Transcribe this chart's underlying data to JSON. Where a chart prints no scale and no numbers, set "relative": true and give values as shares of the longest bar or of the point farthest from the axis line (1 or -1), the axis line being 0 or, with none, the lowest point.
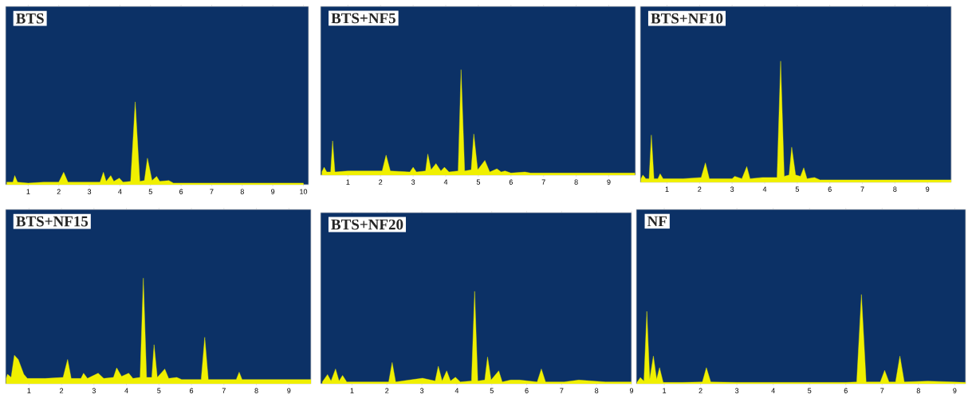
{
  "chart_data": [
    {
      "type": "area",
      "title": "BTS",
      "relative": true,
      "color": "#f0f000",
      "xlim": [
        0.26,
        10.17
      ],
      "xticks": [
        1,
        2,
        3,
        4,
        5,
        6,
        7,
        8,
        9,
        10
      ],
      "x": [
        0.3,
        0.5,
        0.56,
        0.65,
        1.0,
        1.5,
        2.0,
        2.16,
        2.3,
        3.0,
        3.35,
        3.46,
        3.55,
        3.7,
        3.8,
        3.98,
        4.1,
        4.35,
        4.5,
        4.65,
        4.8,
        4.9,
        5.05,
        5.2,
        5.3,
        5.6,
        5.75,
        6.5,
        7.5,
        8.5,
        10.0
      ],
      "values": [
        0.03,
        0.03,
        0.11,
        0.03,
        0.02,
        0.03,
        0.03,
        0.15,
        0.03,
        0.03,
        0.03,
        0.15,
        0.04,
        0.11,
        0.04,
        0.08,
        0.03,
        0.04,
        1,
        0.04,
        0.05,
        0.32,
        0.05,
        0.1,
        0.04,
        0.05,
        0.02,
        0.02,
        0.02,
        0.02,
        0.02
      ]
    },
    {
      "type": "area",
      "title": "BTS+NF5",
      "relative": true,
      "color": "#f0f000",
      "xlim": [
        0.16,
        9.82
      ],
      "xticks": [
        1,
        2,
        3,
        4,
        5,
        6,
        7,
        8,
        9
      ],
      "x": [
        0.2,
        0.27,
        0.35,
        0.47,
        0.53,
        0.6,
        1.0,
        1.5,
        2.05,
        2.17,
        2.3,
        2.9,
        3.0,
        3.1,
        3.38,
        3.45,
        3.55,
        3.7,
        3.85,
        3.96,
        4.1,
        4.38,
        4.47,
        4.58,
        4.78,
        4.86,
        4.98,
        5.2,
        5.35,
        5.57,
        5.7,
        5.82,
        6.0,
        6.43,
        6.6,
        7.08,
        7.3,
        8.0,
        9.0,
        9.8
      ],
      "values": [
        0.03,
        0.075,
        0.03,
        0.03,
        0.325,
        0.03,
        0.04,
        0.04,
        0.04,
        0.19,
        0.04,
        0.03,
        0.075,
        0.03,
        0.04,
        0.2,
        0.05,
        0.11,
        0.04,
        0.075,
        0.03,
        0.04,
        1,
        0.04,
        0.05,
        0.39,
        0.05,
        0.14,
        0.03,
        0.06,
        0.03,
        0.04,
        0.02,
        0.03,
        0.02,
        0.02,
        0.02,
        0.02,
        0.02,
        0.02
      ]
    },
    {
      "type": "area",
      "title": "BTS+NF10",
      "relative": true,
      "color": "#f0f000",
      "xlim": [
        0.18,
        9.73
      ],
      "xticks": [
        1,
        2,
        3,
        4,
        5,
        6,
        7,
        8,
        9
      ],
      "x": [
        0.2,
        0.26,
        0.35,
        0.45,
        0.52,
        0.6,
        0.72,
        0.79,
        0.88,
        1.5,
        2.05,
        2.18,
        2.3,
        3.0,
        3.08,
        3.3,
        3.45,
        3.55,
        3.93,
        4.38,
        4.49,
        4.6,
        4.75,
        4.83,
        4.95,
        5.1,
        5.2,
        5.3,
        5.53,
        5.7,
        6.38,
        7.04,
        7.5,
        8.26,
        9.0,
        9.73
      ],
      "values": [
        0.03,
        0.06,
        0.03,
        0.03,
        0.39,
        0.03,
        0.03,
        0.07,
        0.03,
        0.03,
        0.04,
        0.16,
        0.03,
        0.03,
        0.05,
        0.03,
        0.13,
        0.03,
        0.04,
        0.04,
        1,
        0.05,
        0.06,
        0.29,
        0.06,
        0.05,
        0.12,
        0.03,
        0.04,
        0.02,
        0.02,
        0.02,
        0.02,
        0.02,
        0.02,
        0.02
      ]
    },
    {
      "type": "area",
      "title": "BTS+NF15",
      "relative": true,
      "color": "#f0f000",
      "xlim": [
        0.28,
        9.68
      ],
      "xticks": [
        1,
        2,
        3,
        4,
        5,
        6,
        7,
        8,
        9
      ],
      "x": [
        0.3,
        0.34,
        0.45,
        0.55,
        0.67,
        0.84,
        0.95,
        1.5,
        2.05,
        2.19,
        2.3,
        2.6,
        2.68,
        2.8,
        3.13,
        3.3,
        3.6,
        3.7,
        3.85,
        4.07,
        4.2,
        4.42,
        4.52,
        4.62,
        4.78,
        4.85,
        4.95,
        5.18,
        5.3,
        5.55,
        5.7,
        6.3,
        6.41,
        6.52,
        7.06,
        7.38,
        7.47,
        7.56,
        8.25,
        9.0,
        9.68
      ],
      "values": [
        0.05,
        0.09,
        0.06,
        0.27,
        0.23,
        0.09,
        0.05,
        0.05,
        0.06,
        0.23,
        0.05,
        0.05,
        0.1,
        0.05,
        0.1,
        0.05,
        0.06,
        0.15,
        0.07,
        0.1,
        0.05,
        0.06,
        1,
        0.06,
        0.06,
        0.37,
        0.06,
        0.14,
        0.05,
        0.06,
        0.04,
        0.04,
        0.44,
        0.04,
        0.04,
        0.04,
        0.11,
        0.04,
        0.04,
        0.04,
        0.04
      ]
    },
    {
      "type": "area",
      "title": "BTS+NF20",
      "relative": true,
      "color": "#f0f000",
      "xlim": [
        0.1,
        9.0
      ],
      "xticks": [
        1,
        2,
        3,
        4,
        5,
        6,
        7,
        8,
        9
      ],
      "x": [
        0.15,
        0.3,
        0.4,
        0.53,
        0.63,
        0.73,
        0.85,
        1.5,
        2.05,
        2.15,
        2.25,
        3.02,
        3.38,
        3.47,
        3.58,
        3.71,
        3.82,
        3.96,
        4.1,
        4.42,
        4.51,
        4.6,
        4.8,
        4.88,
        4.98,
        5.2,
        5.3,
        5.54,
        5.8,
        6.3,
        6.42,
        6.54,
        7.07,
        7.49,
        8.25,
        9.0
      ],
      "values": [
        0.02,
        0.1,
        0.03,
        0.16,
        0.03,
        0.09,
        0.02,
        0.02,
        0.02,
        0.23,
        0.02,
        0.06,
        0.03,
        0.19,
        0.03,
        0.14,
        0.03,
        0.07,
        0.02,
        0.03,
        1,
        0.03,
        0.04,
        0.29,
        0.04,
        0.14,
        0.02,
        0.04,
        0.04,
        0.02,
        0.16,
        0.02,
        0.02,
        0.04,
        0.02,
        0.02
      ]
    },
    {
      "type": "area",
      "title": "NF",
      "relative": true,
      "color": "#f0f000",
      "xlim": [
        0.23,
        9.3
      ],
      "xticks": [
        1,
        2,
        3,
        4,
        5,
        6,
        7,
        8,
        9
      ],
      "x": [
        0.25,
        0.34,
        0.44,
        0.52,
        0.6,
        0.7,
        0.79,
        0.87,
        0.97,
        1.5,
        2.05,
        2.16,
        2.28,
        3.0,
        4.0,
        5.0,
        6.0,
        6.3,
        6.43,
        6.56,
        6.95,
        7.07,
        7.19,
        7.37,
        7.49,
        7.61,
        8.26,
        9.3
      ],
      "values": [
        0.015,
        0.07,
        0.03,
        0.81,
        0.05,
        0.31,
        0.05,
        0.18,
        0.015,
        0.015,
        0.02,
        0.18,
        0.02,
        0.015,
        0.015,
        0.015,
        0.015,
        0.02,
        1,
        0.02,
        0.02,
        0.15,
        0.02,
        0.02,
        0.31,
        0.02,
        0.03,
        0.015
      ]
    }
  ]
}
